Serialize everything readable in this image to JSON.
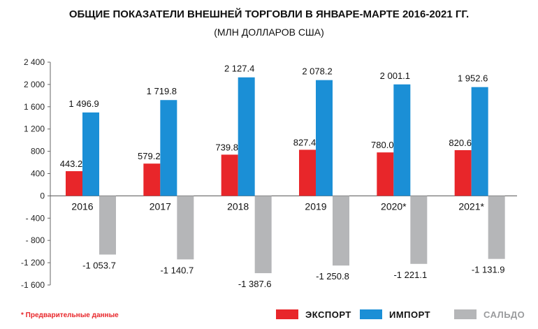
{
  "chart_data": {
    "type": "bar",
    "title": "ОБЩИЕ ПОКАЗАТЕЛИ ВНЕШНЕЙ ТОРГОВЛИ В ЯНВАРЕ-МАРТЕ 2016-2021 ГГ.",
    "subtitle": "(МЛН ДОЛЛАРОВ США)",
    "categories": [
      "2016",
      "2017",
      "2018",
      "2019",
      "2020*",
      "2021*"
    ],
    "series": [
      {
        "name": "ЭКСПОРТ",
        "color": "#e8262a",
        "values": [
          443.2,
          579.2,
          739.8,
          827.4,
          780.0,
          820.6
        ],
        "labels": [
          "443.2",
          "579.2",
          "739.8",
          "827.4",
          "780.0",
          "820.6"
        ]
      },
      {
        "name": "ИМПОРТ",
        "color": "#1b8fd6",
        "values": [
          1496.9,
          1719.8,
          2127.4,
          2078.2,
          2001.1,
          1952.6
        ],
        "labels": [
          "1 496.9",
          "1 719.8",
          "2 127.4",
          "2 078.2",
          "2 001.1",
          "1 952.6"
        ]
      },
      {
        "name": "САЛЬДО",
        "color": "#b5b6b8",
        "values": [
          -1053.7,
          -1140.7,
          -1387.6,
          -1250.8,
          -1221.1,
          -1131.9
        ],
        "labels": [
          "-1 053.7",
          "-1 140.7",
          "-1 387.6",
          "-1 250.8",
          "-1 221.1",
          "-1 131.9"
        ]
      }
    ],
    "ylim": [
      -1600,
      2400
    ],
    "yticks": [
      2400,
      2000,
      1600,
      1200,
      800,
      400,
      0,
      -400,
      -800,
      -1200,
      -1600
    ],
    "ytick_labels": [
      "2 400",
      "2 000",
      "1 600",
      "1 200",
      "800",
      "400",
      "0",
      "- 400",
      "- 800",
      "-1 200",
      "-1 600"
    ],
    "grid": false,
    "legend_position": "bottom-right"
  },
  "footnote": {
    "star": "*",
    "text": " Предварительные данные"
  }
}
